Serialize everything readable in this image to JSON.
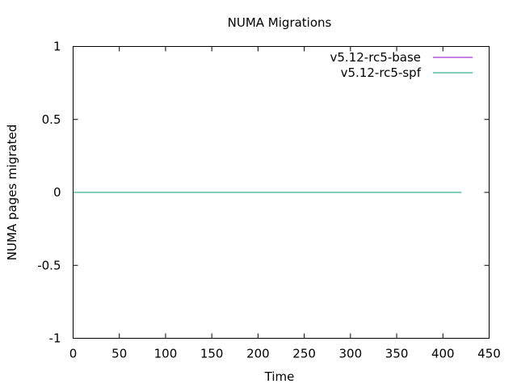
{
  "chart_data": {
    "type": "line",
    "title": "NUMA Migrations",
    "xlabel": "Time",
    "ylabel": "NUMA pages migrated",
    "xlim": [
      0,
      450
    ],
    "ylim": [
      -1,
      1
    ],
    "x_ticks": [
      0,
      50,
      100,
      150,
      200,
      250,
      300,
      350,
      400,
      450
    ],
    "y_ticks": [
      1,
      0.5,
      0,
      -0.5,
      -1
    ],
    "x_tick_labels": [
      "0",
      "50",
      "100",
      "150",
      "200",
      "250",
      "300",
      "350",
      "400",
      "450"
    ],
    "y_tick_labels": [
      "1",
      "0.5",
      "0",
      "-0.5",
      "-1"
    ],
    "grid": false,
    "legend_position": "top-right",
    "series": [
      {
        "name": "v5.12-rc5-base",
        "color": "#9400d3",
        "x": [
          0,
          420
        ],
        "y": [
          0,
          0
        ]
      },
      {
        "name": "v5.12-rc5-spf",
        "color": "#009e73",
        "x": [
          0,
          420
        ],
        "y": [
          0,
          0
        ]
      }
    ]
  }
}
